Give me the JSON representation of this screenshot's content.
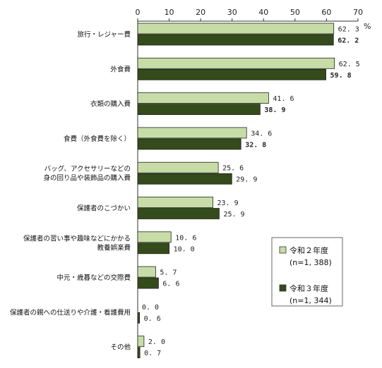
{
  "chart_data": {
    "type": "bar",
    "orientation": "horizontal",
    "unit": "%",
    "xlim": [
      0,
      70
    ],
    "x_ticks": [
      "0",
      "10",
      "20",
      "30",
      "40",
      "50",
      "60",
      "70"
    ],
    "grid": false,
    "legend_position": "bottom-right",
    "categories": [
      [
        "旅行・レジャー費"
      ],
      [
        "外食費"
      ],
      [
        "衣類の購入費"
      ],
      [
        "食費（外食費を除く）"
      ],
      [
        "バッグ、アクセサリーなどの",
        "身の回り品や装飾品の購入費"
      ],
      [
        "保護者のこづかい"
      ],
      [
        "保護者の習い事や趣味などにかかる",
        "教養娯楽費"
      ],
      [
        "中元・歳暮などの交際費"
      ],
      [
        "保護者の親への仕送りや介護・看護費用"
      ],
      [
        "その他"
      ]
    ],
    "series": [
      {
        "name": "令和２年度",
        "sub": "(n=1, 388)",
        "color": "#c6dea5",
        "values": [
          62.3,
          62.5,
          41.6,
          34.6,
          25.6,
          23.9,
          10.6,
          5.7,
          0.0,
          2.0
        ],
        "labels": [
          "62. 3",
          "62. 5",
          "41. 6",
          "34. 6",
          "25. 6",
          "23. 9",
          "10. 6",
          "5. 7",
          "0. 0",
          "2. 0"
        ],
        "bold": [
          false,
          false,
          false,
          false,
          false,
          false,
          false,
          false,
          false,
          false
        ]
      },
      {
        "name": "令和３年度",
        "sub": "(n=1, 344)",
        "color": "#344b1a",
        "values": [
          62.2,
          59.8,
          38.9,
          32.8,
          29.9,
          25.9,
          10.0,
          6.6,
          0.6,
          0.7
        ],
        "labels": [
          "62. 2",
          "59. 8",
          "38. 9",
          "32. 8",
          "29. 9",
          "25. 9",
          "10. 0",
          "6. 6",
          "0. 6",
          "0. 7"
        ],
        "bold": [
          true,
          true,
          true,
          true,
          false,
          false,
          false,
          false,
          false,
          false
        ]
      }
    ]
  }
}
